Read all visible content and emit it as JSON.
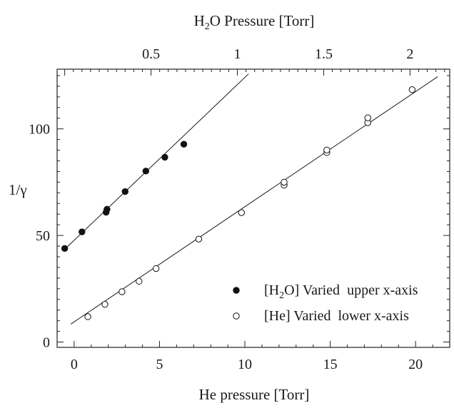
{
  "chart_data": {
    "type": "scatter",
    "top_axis": {
      "label_prefix": "H",
      "label_sub": "2",
      "label_suffix": "O Pressure [Torr]",
      "range": [
        -0.044,
        2.23
      ],
      "ticks": [
        "0.5",
        "1",
        "1.5",
        "2"
      ],
      "tick_values": [
        0.5,
        1,
        1.5,
        2
      ]
    },
    "bottom_axis": {
      "label": "He pressure [Torr]",
      "range": [
        -1.0,
        22.0
      ],
      "ticks": [
        "0",
        "5",
        "10",
        "15",
        "20"
      ],
      "tick_values": [
        0,
        5,
        10,
        15,
        20
      ]
    },
    "y_axis": {
      "label": "1/γ",
      "range": [
        -2.5,
        128
      ],
      "ticks": [
        "0",
        "50",
        "100"
      ],
      "tick_values": [
        0,
        50,
        100
      ]
    },
    "series": [
      {
        "name_prefix": "[H",
        "name_sub": "2",
        "name_suffix": "O] Varied",
        "axis_note": "upper x-axis",
        "marker": "filled-circle",
        "x_axis": "top",
        "points": [
          [
            0.0,
            43.9
          ],
          [
            0.1,
            51.7
          ],
          [
            0.24,
            60.9
          ],
          [
            0.245,
            62.3
          ],
          [
            0.35,
            70.6
          ],
          [
            0.47,
            80.2
          ],
          [
            0.58,
            86.7
          ],
          [
            0.69,
            92.8
          ]
        ],
        "fit": {
          "x": [
            0.0,
            1.065
          ],
          "y": [
            43.5,
            125.8
          ]
        }
      },
      {
        "name_prefix": "[He] Varied",
        "name_sub": "",
        "name_suffix": "",
        "axis_note": "lower x-axis",
        "marker": "open-circle",
        "x_axis": "bottom",
        "points": [
          [
            0.8,
            11.9
          ],
          [
            1.8,
            17.7
          ],
          [
            2.8,
            23.6
          ],
          [
            3.8,
            28.5
          ],
          [
            4.8,
            34.5
          ],
          [
            7.3,
            48.3
          ],
          [
            9.8,
            60.7
          ],
          [
            12.3,
            73.6
          ],
          [
            12.3,
            75.0
          ],
          [
            14.8,
            88.9
          ],
          [
            14.8,
            90.1
          ],
          [
            17.2,
            102.9
          ],
          [
            17.2,
            105.2
          ],
          [
            19.8,
            118.4
          ]
        ],
        "fit": {
          "x": [
            -0.2,
            21.3
          ],
          "y": [
            8.4,
            124.5
          ]
        }
      }
    ],
    "grid": false,
    "legend_position": "bottom-right"
  }
}
